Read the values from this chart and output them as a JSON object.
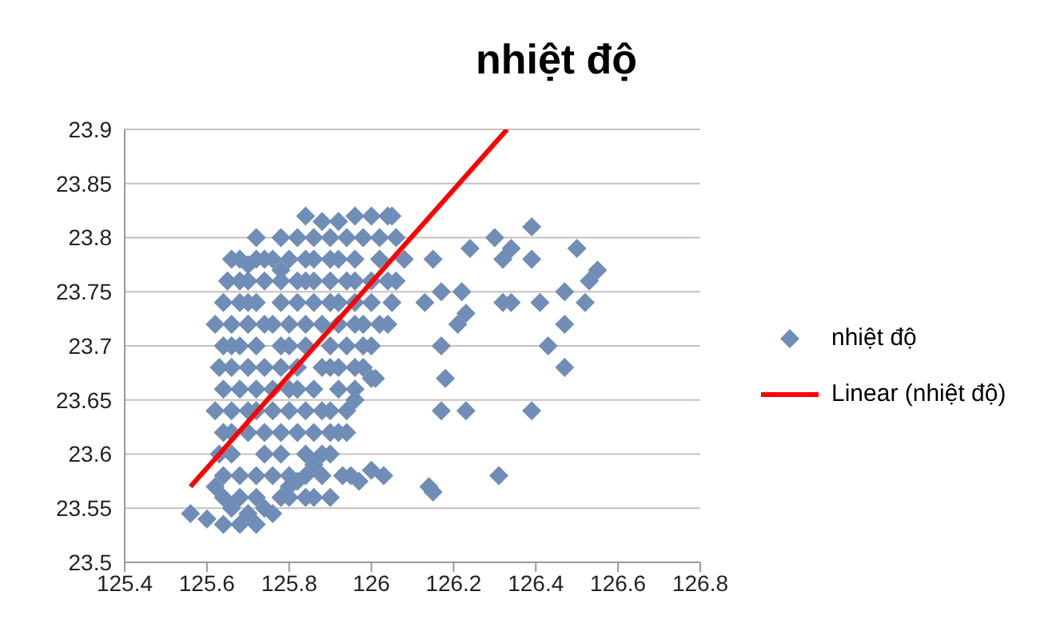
{
  "chart_data": {
    "type": "scatter",
    "title": "nhiệt độ",
    "xlim": [
      125.4,
      126.8
    ],
    "xticks": [
      125.4,
      125.6,
      125.8,
      126,
      126.2,
      126.4,
      126.6,
      126.8
    ],
    "ylim": [
      23.5,
      23.9
    ],
    "yticks": [
      23.5,
      23.55,
      23.6,
      23.65,
      23.7,
      23.75,
      23.8,
      23.85,
      23.9
    ],
    "grid": "y",
    "legend": "right",
    "marker": "diamond",
    "series": [
      {
        "name": "nhiệt độ",
        "type": "scatter",
        "color": "#6f8db6",
        "x": [
          125.56,
          125.6,
          125.62,
          125.64,
          125.66,
          125.68,
          125.7,
          125.72,
          125.74,
          125.76,
          125.78,
          125.8,
          125.82,
          125.84,
          125.86,
          125.88,
          125.9,
          125.92,
          125.95,
          125.97,
          126.0,
          125.63,
          125.62,
          125.63,
          125.62,
          125.65,
          125.68,
          125.7,
          125.74,
          125.78,
          125.82,
          125.84,
          125.88,
          125.92,
          125.96,
          126.0,
          126.04,
          126.06,
          126.08,
          126.06,
          126.05,
          126.04,
          126.0,
          125.98,
          126.0,
          125.96,
          125.94,
          125.66,
          125.7,
          125.68,
          125.72,
          125.7,
          125.74,
          125.76,
          125.78,
          125.76,
          125.74,
          125.72,
          125.78,
          125.82,
          125.8,
          125.84,
          125.82,
          125.8,
          125.86,
          125.88,
          125.86,
          125.9,
          125.92,
          125.9,
          125.94,
          125.96,
          125.98,
          125.94,
          125.88,
          125.84,
          125.86,
          125.9,
          125.93,
          125.66,
          125.7,
          125.68,
          126.39,
          126.5,
          126.55,
          126.53,
          126.47,
          126.52,
          126.47,
          126.43,
          126.47,
          126.39,
          126.31,
          126.41,
          126.39,
          126.34,
          126.32,
          126.34,
          126.3,
          126.32,
          126.24,
          126.23,
          126.21,
          126.17,
          126.18,
          126.17,
          126.23,
          126.14,
          126.15,
          126.03,
          126.15,
          126.17,
          126.13,
          126.22,
          126.01,
          126.05,
          125.64,
          125.68,
          125.72,
          125.8,
          125.84,
          125.64,
          125.68,
          125.76,
          125.8,
          125.88,
          125.64,
          125.66,
          125.74,
          125.78,
          125.86,
          125.9,
          125.94,
          125.66,
          125.7,
          125.72,
          125.8,
          125.84,
          125.9,
          125.64,
          125.72,
          125.76,
          125.82,
          125.92,
          125.96,
          125.66,
          125.7,
          125.74,
          125.82,
          125.88,
          125.92,
          125.96,
          125.64,
          125.68,
          125.78,
          125.8,
          125.9,
          125.98,
          125.66,
          125.7,
          125.74,
          125.8,
          125.84,
          125.92,
          125.96,
          126.02,
          125.64,
          125.68,
          125.72,
          125.78,
          125.86,
          125.9,
          125.96,
          126,
          125.7,
          125.78,
          125.82,
          125.84,
          125.9,
          125.94,
          126,
          126.04,
          125.66,
          125.72,
          125.76,
          125.84,
          125.86,
          125.92,
          125.96,
          126.02,
          125.72,
          125.78,
          125.86,
          125.9,
          125.98,
          126.02
        ],
        "values": [
          23.545,
          23.54,
          23.57,
          23.535,
          23.55,
          23.535,
          23.545,
          23.535,
          23.55,
          23.545,
          23.56,
          23.57,
          23.575,
          23.58,
          23.59,
          23.6,
          23.6,
          23.62,
          23.58,
          23.575,
          23.585,
          23.6,
          23.64,
          23.68,
          23.72,
          23.76,
          23.78,
          23.775,
          23.78,
          23.77,
          23.8,
          23.82,
          23.815,
          23.815,
          23.82,
          23.82,
          23.82,
          23.8,
          23.78,
          23.76,
          23.74,
          23.72,
          23.7,
          23.68,
          23.67,
          23.65,
          23.64,
          23.6,
          23.62,
          23.66,
          23.7,
          23.74,
          23.76,
          23.72,
          23.68,
          23.64,
          23.6,
          23.58,
          23.6,
          23.62,
          23.66,
          23.7,
          23.74,
          23.78,
          23.76,
          23.72,
          23.66,
          23.68,
          23.74,
          23.78,
          23.8,
          23.76,
          23.72,
          23.7,
          23.64,
          23.6,
          23.56,
          23.56,
          23.58,
          23.7,
          23.72,
          23.76,
          23.81,
          23.79,
          23.77,
          23.76,
          23.75,
          23.74,
          23.72,
          23.7,
          23.68,
          23.64,
          23.58,
          23.74,
          23.78,
          23.79,
          23.74,
          23.74,
          23.8,
          23.78,
          23.79,
          23.73,
          23.72,
          23.7,
          23.67,
          23.64,
          23.64,
          23.57,
          23.565,
          23.58,
          23.78,
          23.75,
          23.74,
          23.75,
          23.67,
          23.82,
          23.56,
          23.56,
          23.56,
          23.56,
          23.56,
          23.58,
          23.58,
          23.58,
          23.58,
          23.58,
          23.62,
          23.62,
          23.62,
          23.62,
          23.62,
          23.62,
          23.62,
          23.64,
          23.64,
          23.64,
          23.64,
          23.64,
          23.64,
          23.66,
          23.66,
          23.66,
          23.66,
          23.66,
          23.66,
          23.68,
          23.68,
          23.68,
          23.68,
          23.68,
          23.68,
          23.68,
          23.7,
          23.7,
          23.7,
          23.7,
          23.7,
          23.7,
          23.72,
          23.72,
          23.72,
          23.72,
          23.72,
          23.72,
          23.72,
          23.72,
          23.74,
          23.74,
          23.74,
          23.74,
          23.74,
          23.74,
          23.74,
          23.74,
          23.76,
          23.76,
          23.76,
          23.76,
          23.76,
          23.76,
          23.76,
          23.76,
          23.78,
          23.78,
          23.78,
          23.78,
          23.78,
          23.78,
          23.78,
          23.78,
          23.8,
          23.8,
          23.8,
          23.8,
          23.8,
          23.8
        ]
      },
      {
        "name": "Linear (nhiệt độ)",
        "type": "line",
        "color": "#ff0000",
        "marker": "none",
        "x": [
          125.56,
          126.33
        ],
        "values": [
          23.57,
          23.9
        ]
      }
    ]
  }
}
